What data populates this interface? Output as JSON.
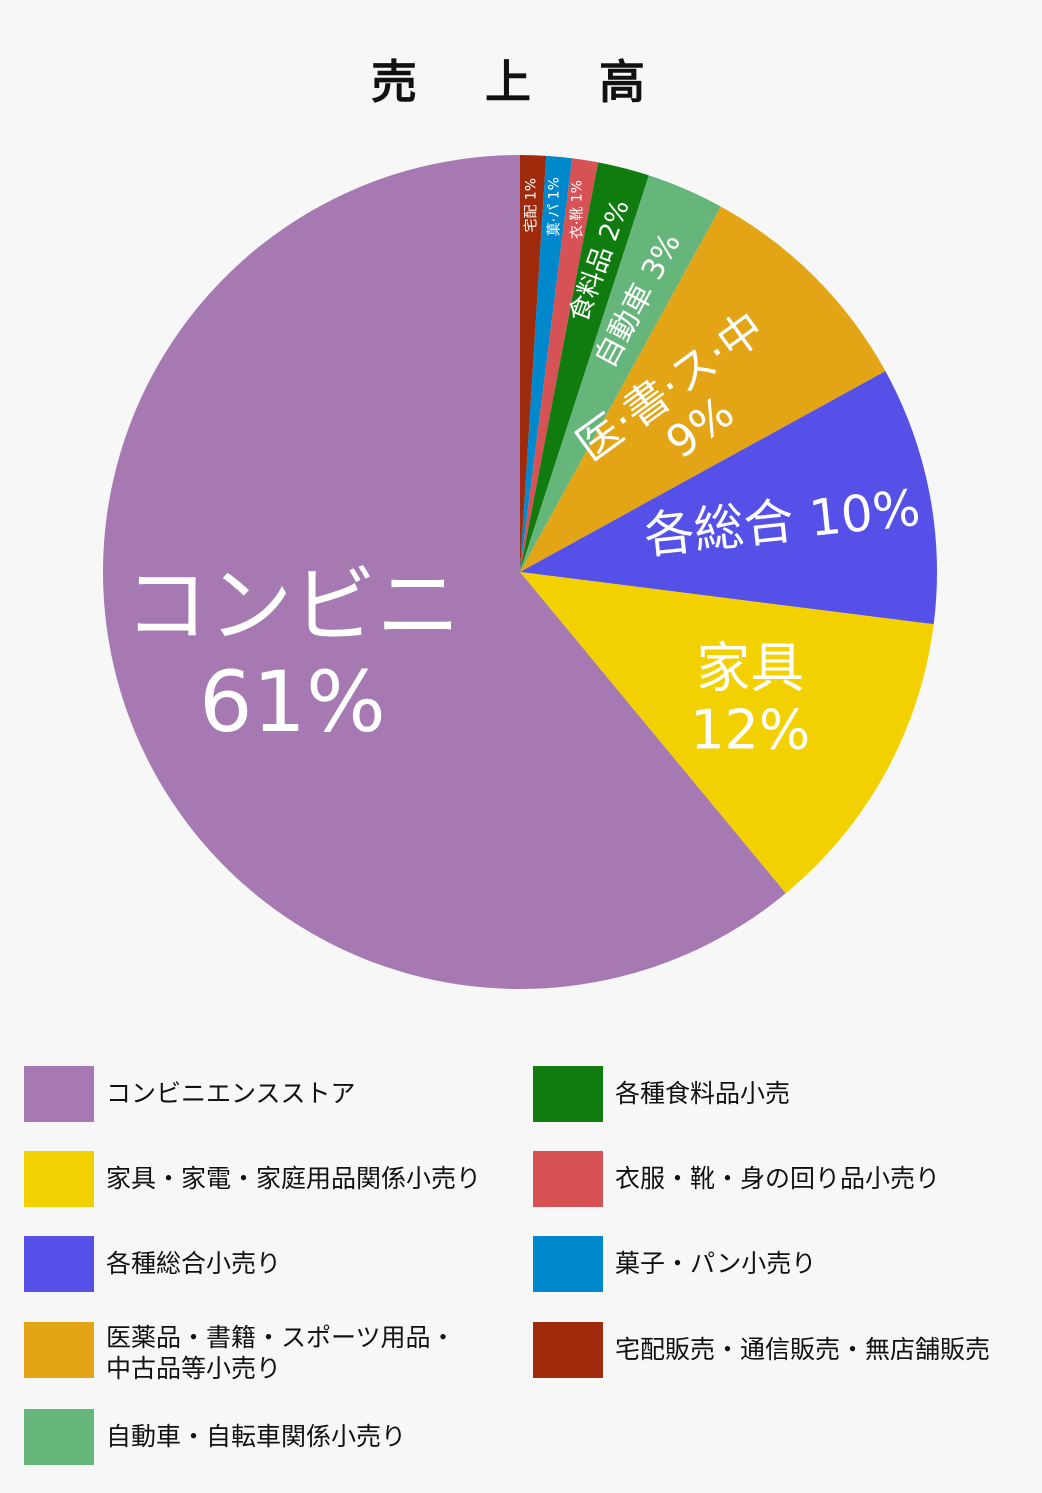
{
  "title": "売 上 高",
  "chart_data": {
    "type": "pie",
    "start": "12 o'clock",
    "direction": "clockwise",
    "slices": [
      {
        "key": "takuhai",
        "value": 1,
        "color": "#a02a0c",
        "label_lines": [
          "宅配 1%"
        ],
        "legend": "宅配販売・通信販売・無店舗販売"
      },
      {
        "key": "kashi",
        "value": 1,
        "color": "#0088cc",
        "label_lines": [
          "菓·パ 1%"
        ],
        "legend": "菓子・パン小売り"
      },
      {
        "key": "ifuku",
        "value": 1,
        "color": "#d65254",
        "label_lines": [
          "衣·靴 1%"
        ],
        "legend": "衣服・靴・身の回り品小売り"
      },
      {
        "key": "shokuryo",
        "value": 2,
        "color": "#107c10",
        "label_lines": [
          "食料品 2%"
        ],
        "legend": "各種食料品小売"
      },
      {
        "key": "jidosha",
        "value": 3,
        "color": "#66b57a",
        "label_lines": [
          "自動車 3%"
        ],
        "legend": "自動車・自転車関係小売り"
      },
      {
        "key": "iyaku",
        "value": 9,
        "color": "#e3a515",
        "label_lines": [
          "医·書·ス·中",
          "9%"
        ],
        "legend": "医薬品・書籍・スポーツ用品・\n中古品等小売り"
      },
      {
        "key": "sogo",
        "value": 10,
        "color": "#5450e8",
        "label_lines": [
          "各総合 10%"
        ],
        "legend": "各種総合小売り"
      },
      {
        "key": "kagu",
        "value": 12,
        "color": "#f3d100",
        "label_lines": [
          "家具",
          "12%"
        ],
        "legend": "家具・家電・家庭用品関係小売り"
      },
      {
        "key": "konbini",
        "value": 61,
        "color": "#a679b2",
        "label_lines": [
          "コンビニ",
          "61%"
        ],
        "legend": "コンビニエンスストア"
      }
    ],
    "legend_order": [
      "konbini",
      "kagu",
      "sogo",
      "iyaku",
      "jidosha",
      "shokuryo",
      "ifuku",
      "kashi",
      "takuhai"
    ]
  }
}
